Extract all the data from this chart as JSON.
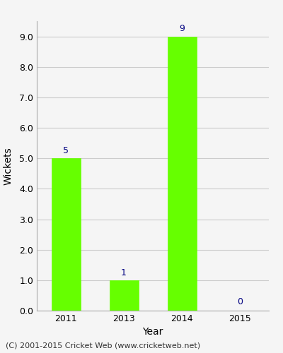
{
  "categories": [
    "2011",
    "2013",
    "2014",
    "2015"
  ],
  "values": [
    5,
    1,
    9,
    0
  ],
  "bar_color": "#66ff00",
  "bar_edge_color": "#66ff00",
  "title": "",
  "xlabel": "Year",
  "ylabel": "Wickets",
  "ylim": [
    0,
    9.5
  ],
  "yticks": [
    0.0,
    1.0,
    2.0,
    3.0,
    4.0,
    5.0,
    6.0,
    7.0,
    8.0,
    9.0
  ],
  "label_color": "#000080",
  "label_fontsize": 9,
  "axis_label_fontsize": 10,
  "tick_fontsize": 9,
  "background_color": "#f5f5f5",
  "footer_text": "(C) 2001-2015 Cricket Web (www.cricketweb.net)",
  "footer_fontsize": 8,
  "grid_color": "#cccccc"
}
